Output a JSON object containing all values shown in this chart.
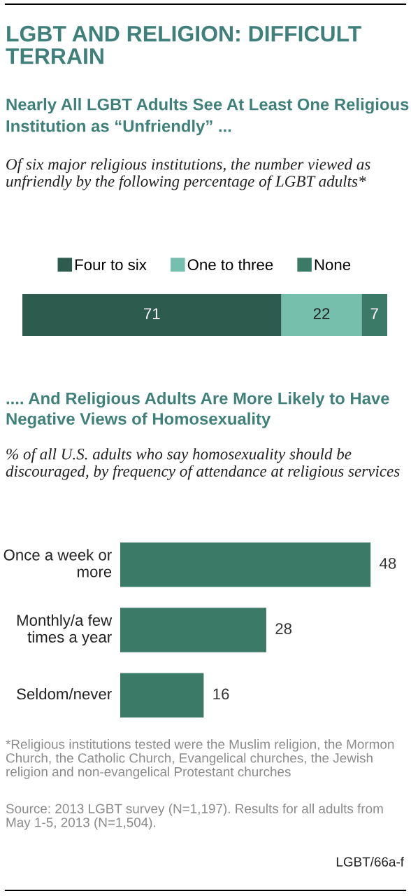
{
  "chart_data": [
    {
      "type": "bar",
      "orientation": "horizontal",
      "stacked": true,
      "title": "LGBT AND RELIGION: DIFFICULT TERRAIN",
      "subtitle": "Nearly All LGBT Adults See At Least One Religious Institution as “Unfriendly” ...",
      "annotations": [
        "Of six major religious institutions, the number viewed as unfriendly by the following percentage of LGBT adults*"
      ],
      "categories": [
        null
      ],
      "series": [
        {
          "name": "Four to six",
          "color": "#2d5b4e",
          "values": [
            71
          ]
        },
        {
          "name": "One to three",
          "color": "#76bfad",
          "values": [
            22
          ]
        },
        {
          "name": "None",
          "color": "#3a7a66",
          "values": [
            7
          ]
        }
      ],
      "data_labels": true,
      "legend": "top"
    },
    {
      "type": "bar",
      "orientation": "horizontal",
      "title": ".... And Religious Adults Are More Likely to Have Negative Views of Homosexuality",
      "subtitle": "% of all U.S. adults who say homosexuality should be discouraged, by frequency of attendance at religious services",
      "categories": [
        "Once a week or more",
        "Monthly/a few times a year",
        "Seldom/never"
      ],
      "values": [
        48,
        28,
        16
      ],
      "color": "#3a7a66",
      "data_labels": true,
      "annotations": [
        "*Religious institutions tested were the Muslim religion, the Mormon Church, the Catholic Church, Evangelical churches, the Jewish religion and non-evangelical Protestant churches",
        "Source: 2013 LGBT survey (N=1,197). Results for all adults from May 1-5, 2013 (N=1,504).",
        "LGBT/66a-f"
      ]
    }
  ]
}
